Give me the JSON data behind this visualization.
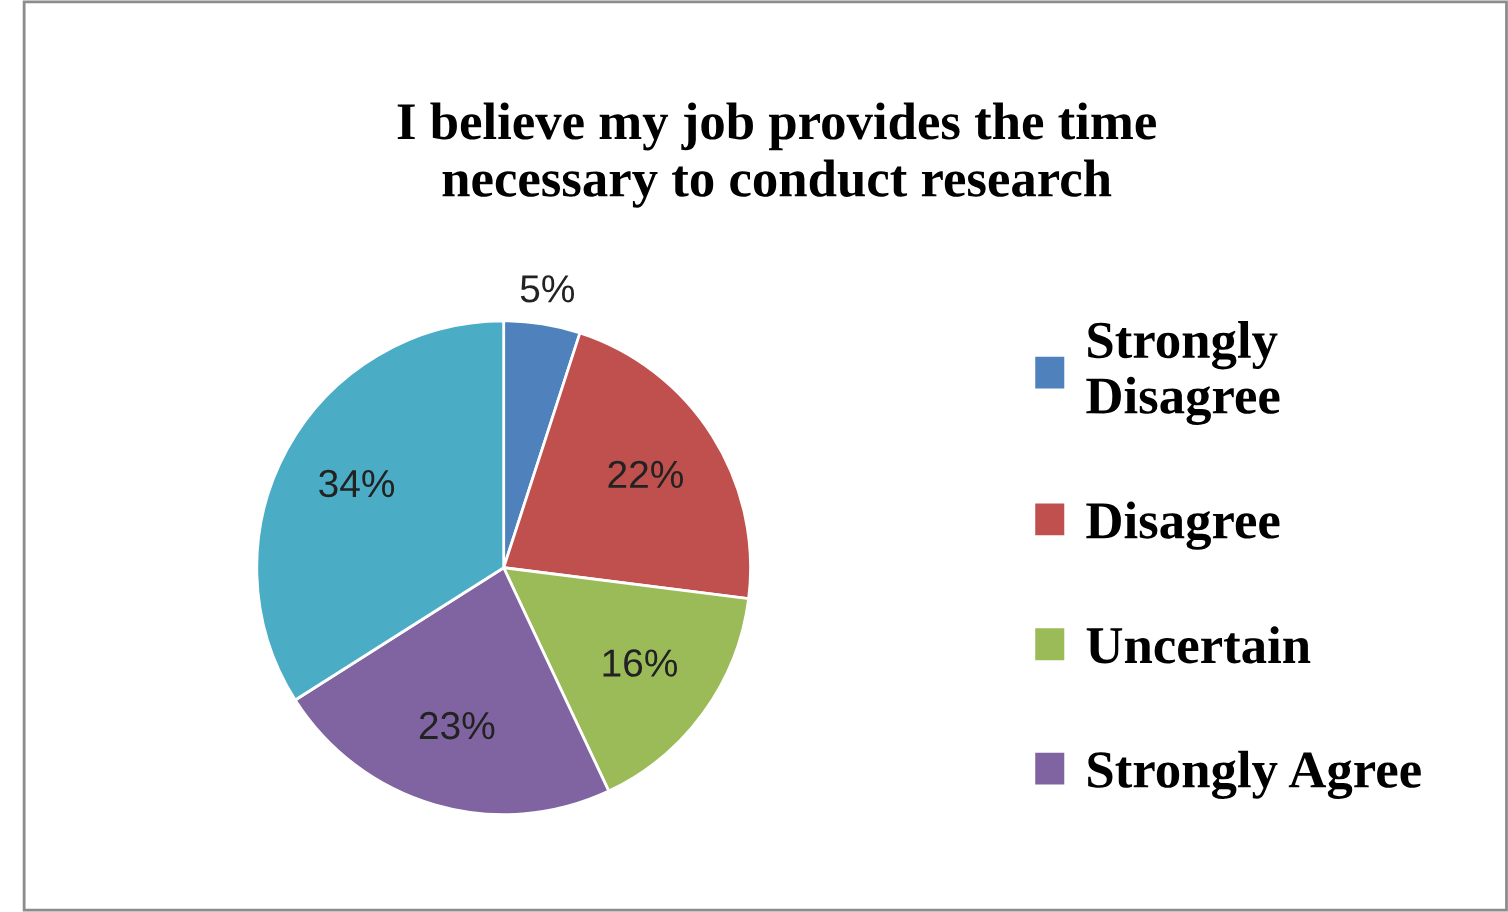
{
  "chart_data": {
    "type": "pie",
    "title": "I believe my job provides the time\nnecessary to conduct research",
    "categories": [
      "Strongly\nDisagree",
      "Disagree",
      "Uncertain",
      "Strongly Agree",
      null
    ],
    "values": [
      5,
      22,
      16,
      23,
      34
    ],
    "colors": [
      "#4f81bd",
      "#c0504d",
      "#9bbb59",
      "#8064a2",
      "#4bacc6"
    ],
    "value_labels": [
      "5%",
      "22%",
      "16%",
      "23%",
      "34%"
    ],
    "legend": "right"
  }
}
